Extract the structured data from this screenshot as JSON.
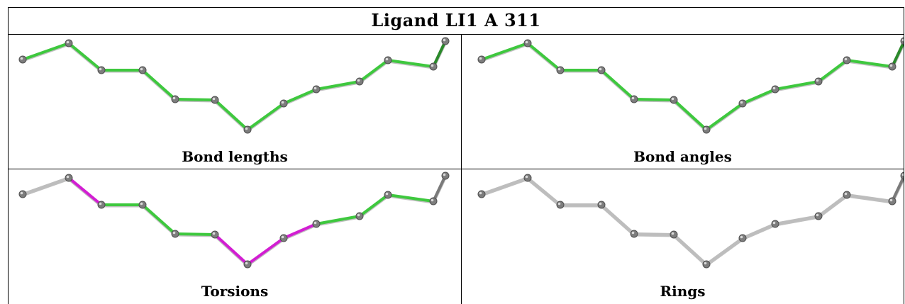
{
  "title": "Ligand LI1 A 311",
  "panels": [
    {
      "key": "bond_lengths",
      "caption": "Bond lengths",
      "bond_colors": [
        "green",
        "green",
        "green",
        "green",
        "green",
        "green",
        "green",
        "green",
        "green",
        "green",
        "green",
        "darkgreen"
      ]
    },
    {
      "key": "bond_angles",
      "caption": "Bond angles",
      "bond_colors": [
        "green",
        "green",
        "green",
        "green",
        "green",
        "green",
        "green",
        "green",
        "green",
        "green",
        "green",
        "darkgreen"
      ]
    },
    {
      "key": "torsions",
      "caption": "Torsions",
      "bond_colors": [
        "grey",
        "magenta",
        "green",
        "green",
        "green",
        "magenta",
        "magenta",
        "magenta",
        "green",
        "green",
        "green",
        "darkgrey"
      ]
    },
    {
      "key": "rings",
      "caption": "Rings",
      "bond_colors": [
        "grey",
        "grey",
        "grey",
        "grey",
        "grey",
        "grey",
        "grey",
        "grey",
        "grey",
        "grey",
        "grey",
        "darkgrey"
      ]
    }
  ],
  "colors": {
    "green": "#3ec83e",
    "darkgreen": "#2a8a2a",
    "magenta": "#d21ed2",
    "grey": "#bdbdbd",
    "darkgrey": "#7a7a7a",
    "atom": "#7d7d7d"
  }
}
